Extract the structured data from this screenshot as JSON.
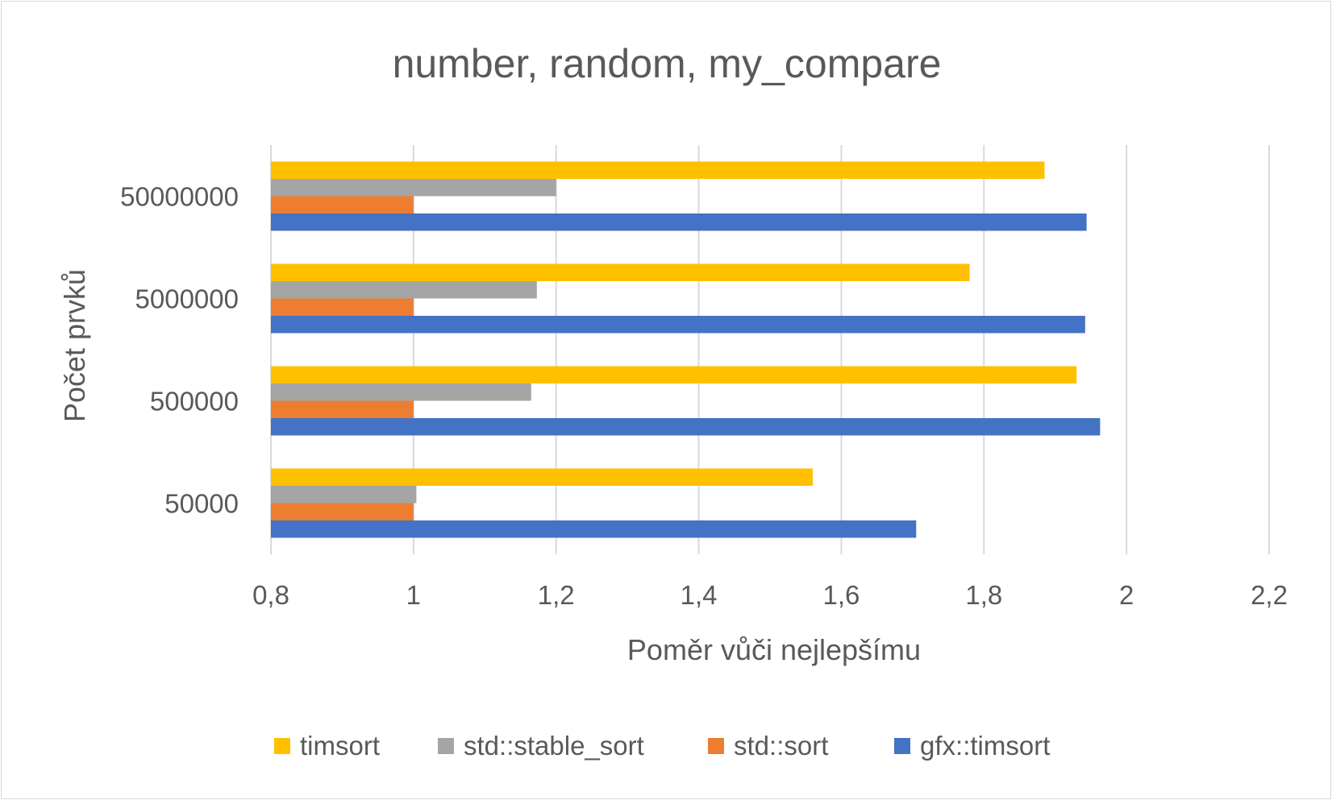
{
  "chart_data": {
    "type": "bar",
    "orientation": "horizontal",
    "title": "number, random, my_compare",
    "xlabel": "Poměr vůči nejlepšímu",
    "ylabel": "Počet prvků",
    "xlim": [
      0.8,
      2.2
    ],
    "xticks": [
      "0,8",
      "1",
      "1,2",
      "1,4",
      "1,6",
      "1,8",
      "2",
      "2,2"
    ],
    "xtick_values": [
      0.8,
      1.0,
      1.2,
      1.4,
      1.6,
      1.8,
      2.0,
      2.2
    ],
    "grid": true,
    "legend_position": "bottom",
    "categories": [
      "50000",
      "500000",
      "5000000",
      "50000000"
    ],
    "series": [
      {
        "name": "timsort",
        "color": "#FFC000",
        "values": [
          1.56,
          1.93,
          1.78,
          1.885
        ]
      },
      {
        "name": "std::stable_sort",
        "color": "#A5A5A5",
        "values": [
          1.004,
          1.165,
          1.173,
          1.2
        ]
      },
      {
        "name": "std::sort",
        "color": "#ED7D31",
        "values": [
          1.0,
          1.0,
          1.0,
          1.0
        ]
      },
      {
        "name": "gfx::timsort",
        "color": "#4472C4",
        "values": [
          1.705,
          1.963,
          1.942,
          1.944
        ]
      }
    ]
  }
}
